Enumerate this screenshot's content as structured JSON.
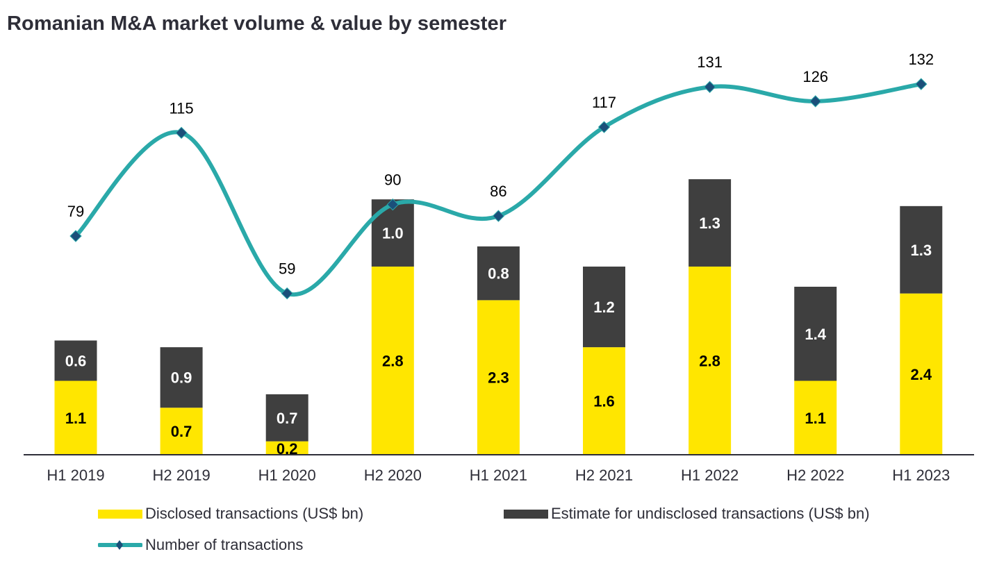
{
  "chart_data": {
    "type": "bar",
    "title": "Romanian M&A market volume & value by semester",
    "xlabel": "",
    "ylabel": "",
    "categories": [
      "H1 2019",
      "H2 2019",
      "H1 2020",
      "H2 2020",
      "H1 2021",
      "H2 2021",
      "H1 2022",
      "H2 2022",
      "H1 2023"
    ],
    "series": [
      {
        "name": "Disclosed transactions (US$ bn)",
        "kind": "stacked-bar",
        "color": "#ffe600",
        "label_color": "#000000",
        "values": [
          1.1,
          0.7,
          0.2,
          2.8,
          2.3,
          1.6,
          2.8,
          1.1,
          2.4
        ]
      },
      {
        "name": "Estimate for undisclosed transactions (US$ bn)",
        "kind": "stacked-bar",
        "color": "#3f3f3f",
        "label_color": "#ffffff",
        "values": [
          0.6,
          0.9,
          0.7,
          1.0,
          0.8,
          1.2,
          1.3,
          1.4,
          1.3
        ]
      },
      {
        "name": "Number of transactions",
        "kind": "line",
        "color": "#2aa9a9",
        "marker_color": "#1b4f7a",
        "values": [
          79,
          115,
          59,
          90,
          86,
          117,
          131,
          126,
          132
        ]
      }
    ],
    "grid": false,
    "legend_position": "bottom"
  },
  "legend": {
    "disclosed": "Disclosed transactions (US$ bn)",
    "undisclosed": "Estimate for undisclosed transactions (US$ bn)",
    "count": "Number of transactions"
  }
}
